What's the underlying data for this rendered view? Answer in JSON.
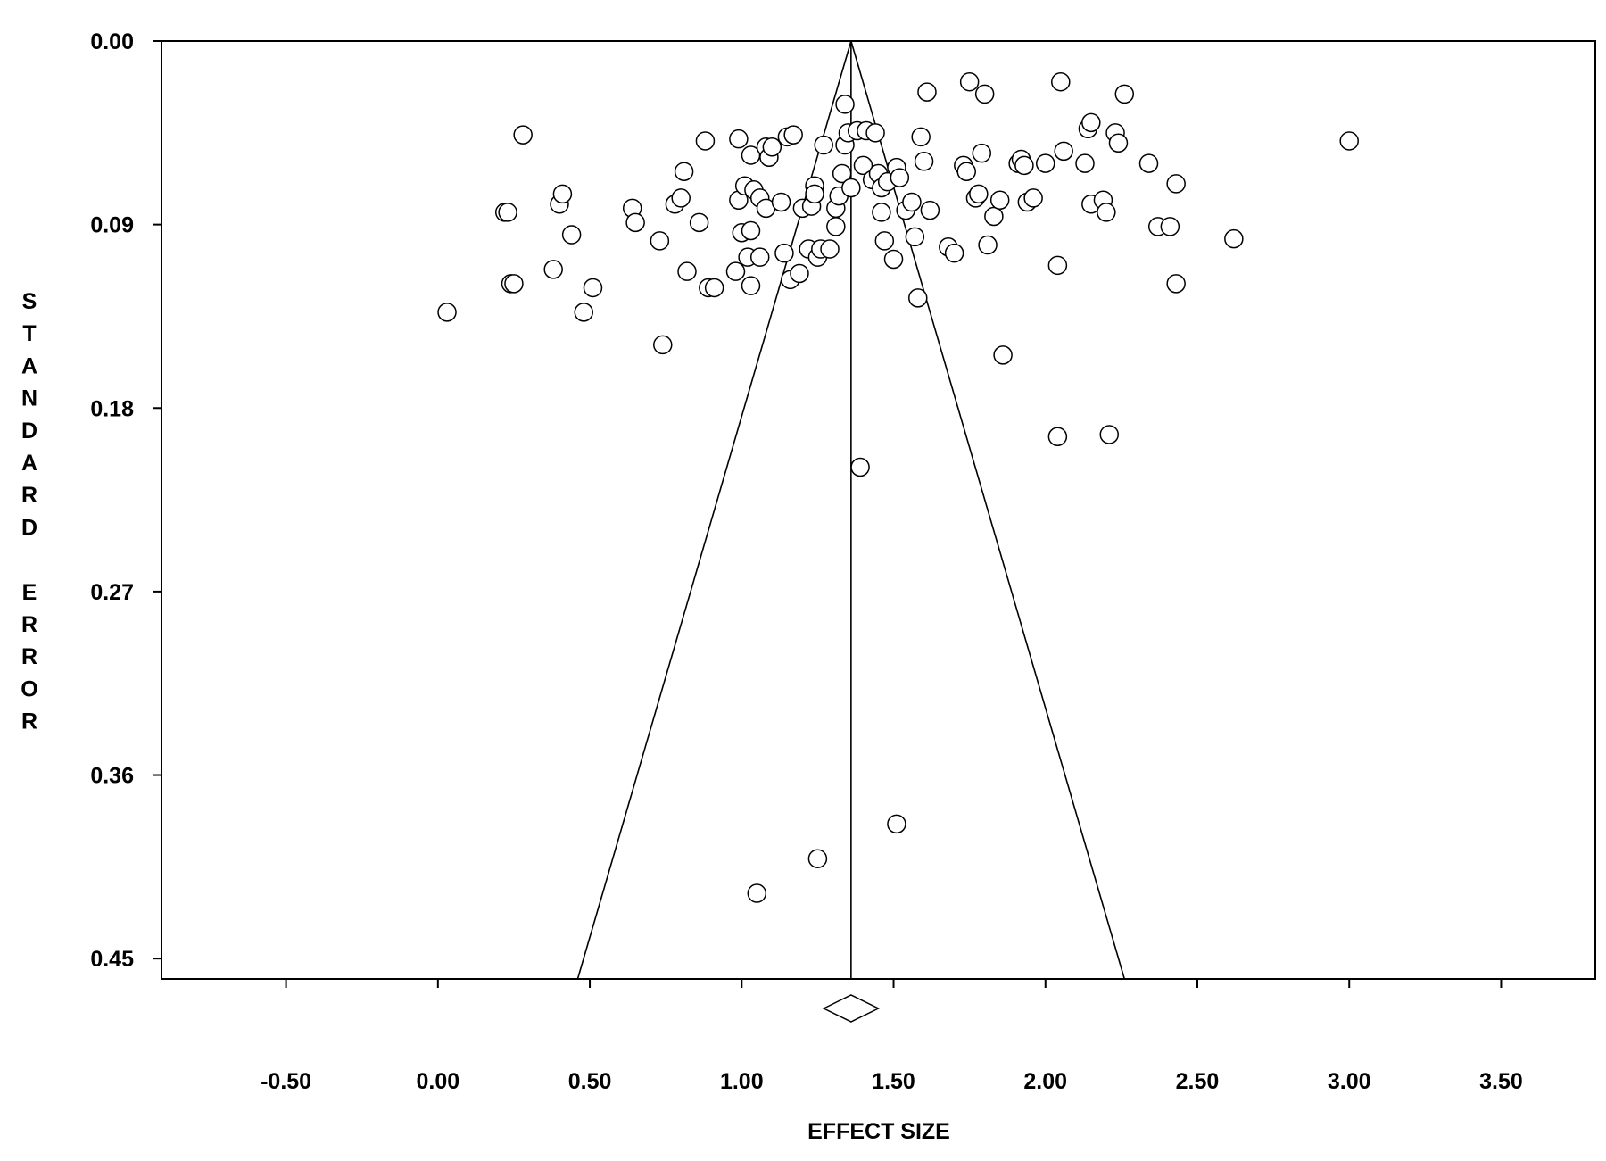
{
  "chart_data": {
    "type": "scatter",
    "title": "",
    "xlabel": "EFFECT SIZE",
    "ylabel": "STANDARD ERROR",
    "x_ticks": [
      "-0.50",
      "0.00",
      "0.50",
      "1.00",
      "1.50",
      "2.00",
      "2.50",
      "3.00",
      "3.50"
    ],
    "y_ticks": [
      "0.00",
      "0.09",
      "0.18",
      "0.27",
      "0.36",
      "0.45"
    ],
    "xlim": [
      -0.91,
      3.81
    ],
    "ylim": [
      0.0,
      0.46
    ],
    "y_inverted": true,
    "grid": false,
    "pooled_effect": 1.36,
    "funnel": {
      "apex": [
        1.36,
        0.0
      ],
      "bottom_left": [
        0.46,
        0.46
      ],
      "bottom_right": [
        2.26,
        0.46
      ]
    },
    "summary_diamond": {
      "center": 1.36,
      "lower": 1.27,
      "upper": 1.45
    },
    "points": [
      {
        "x": 0.03,
        "y": 0.133
      },
      {
        "x": 0.22,
        "y": 0.084
      },
      {
        "x": 0.23,
        "y": 0.084
      },
      {
        "x": 0.24,
        "y": 0.119
      },
      {
        "x": 0.25,
        "y": 0.119
      },
      {
        "x": 0.28,
        "y": 0.046
      },
      {
        "x": 0.38,
        "y": 0.112
      },
      {
        "x": 0.4,
        "y": 0.08
      },
      {
        "x": 0.41,
        "y": 0.075
      },
      {
        "x": 0.44,
        "y": 0.095
      },
      {
        "x": 0.48,
        "y": 0.133
      },
      {
        "x": 0.51,
        "y": 0.121
      },
      {
        "x": 0.64,
        "y": 0.082
      },
      {
        "x": 0.65,
        "y": 0.089
      },
      {
        "x": 0.73,
        "y": 0.098
      },
      {
        "x": 0.74,
        "y": 0.149
      },
      {
        "x": 0.78,
        "y": 0.08
      },
      {
        "x": 0.8,
        "y": 0.077
      },
      {
        "x": 0.81,
        "y": 0.064
      },
      {
        "x": 0.82,
        "y": 0.113
      },
      {
        "x": 0.86,
        "y": 0.089
      },
      {
        "x": 0.88,
        "y": 0.049
      },
      {
        "x": 0.89,
        "y": 0.121
      },
      {
        "x": 0.91,
        "y": 0.121
      },
      {
        "x": 0.98,
        "y": 0.113
      },
      {
        "x": 0.99,
        "y": 0.078
      },
      {
        "x": 0.99,
        "y": 0.048
      },
      {
        "x": 1.0,
        "y": 0.094
      },
      {
        "x": 1.01,
        "y": 0.071
      },
      {
        "x": 1.02,
        "y": 0.106
      },
      {
        "x": 1.03,
        "y": 0.093
      },
      {
        "x": 1.03,
        "y": 0.056
      },
      {
        "x": 1.03,
        "y": 0.12
      },
      {
        "x": 1.04,
        "y": 0.073
      },
      {
        "x": 1.06,
        "y": 0.077
      },
      {
        "x": 1.06,
        "y": 0.106
      },
      {
        "x": 1.08,
        "y": 0.082
      },
      {
        "x": 1.08,
        "y": 0.052
      },
      {
        "x": 1.09,
        "y": 0.057
      },
      {
        "x": 1.1,
        "y": 0.052
      },
      {
        "x": 1.13,
        "y": 0.079
      },
      {
        "x": 1.14,
        "y": 0.104
      },
      {
        "x": 1.15,
        "y": 0.047
      },
      {
        "x": 1.16,
        "y": 0.117
      },
      {
        "x": 1.17,
        "y": 0.046
      },
      {
        "x": 1.19,
        "y": 0.114
      },
      {
        "x": 1.2,
        "y": 0.082
      },
      {
        "x": 1.22,
        "y": 0.102
      },
      {
        "x": 1.23,
        "y": 0.081
      },
      {
        "x": 1.24,
        "y": 0.071
      },
      {
        "x": 1.24,
        "y": 0.075
      },
      {
        "x": 1.25,
        "y": 0.106
      },
      {
        "x": 1.26,
        "y": 0.102
      },
      {
        "x": 1.27,
        "y": 0.051
      },
      {
        "x": 1.29,
        "y": 0.102
      },
      {
        "x": 1.31,
        "y": 0.091
      },
      {
        "x": 1.31,
        "y": 0.082
      },
      {
        "x": 1.32,
        "y": 0.076
      },
      {
        "x": 1.33,
        "y": 0.065
      },
      {
        "x": 1.34,
        "y": 0.051
      },
      {
        "x": 1.34,
        "y": 0.031
      },
      {
        "x": 1.35,
        "y": 0.045
      },
      {
        "x": 1.36,
        "y": 0.072
      },
      {
        "x": 1.38,
        "y": 0.044
      },
      {
        "x": 1.39,
        "y": 0.209
      },
      {
        "x": 1.4,
        "y": 0.061
      },
      {
        "x": 1.41,
        "y": 0.044
      },
      {
        "x": 1.43,
        "y": 0.068
      },
      {
        "x": 1.44,
        "y": 0.045
      },
      {
        "x": 1.45,
        "y": 0.065
      },
      {
        "x": 1.46,
        "y": 0.072
      },
      {
        "x": 1.46,
        "y": 0.084
      },
      {
        "x": 1.47,
        "y": 0.098
      },
      {
        "x": 1.48,
        "y": 0.069
      },
      {
        "x": 1.5,
        "y": 0.107
      },
      {
        "x": 1.51,
        "y": 0.062
      },
      {
        "x": 1.52,
        "y": 0.067
      },
      {
        "x": 1.51,
        "y": 0.384
      },
      {
        "x": 1.54,
        "y": 0.083
      },
      {
        "x": 1.56,
        "y": 0.079
      },
      {
        "x": 1.57,
        "y": 0.096
      },
      {
        "x": 1.58,
        "y": 0.126
      },
      {
        "x": 1.59,
        "y": 0.047
      },
      {
        "x": 1.6,
        "y": 0.059
      },
      {
        "x": 1.61,
        "y": 0.025
      },
      {
        "x": 1.62,
        "y": 0.083
      },
      {
        "x": 1.68,
        "y": 0.101
      },
      {
        "x": 1.7,
        "y": 0.104
      },
      {
        "x": 1.73,
        "y": 0.061
      },
      {
        "x": 1.74,
        "y": 0.064
      },
      {
        "x": 1.75,
        "y": 0.02
      },
      {
        "x": 1.77,
        "y": 0.077
      },
      {
        "x": 1.78,
        "y": 0.075
      },
      {
        "x": 1.79,
        "y": 0.055
      },
      {
        "x": 1.8,
        "y": 0.026
      },
      {
        "x": 1.81,
        "y": 0.1
      },
      {
        "x": 1.83,
        "y": 0.086
      },
      {
        "x": 1.85,
        "y": 0.078
      },
      {
        "x": 1.86,
        "y": 0.154
      },
      {
        "x": 1.91,
        "y": 0.06
      },
      {
        "x": 1.92,
        "y": 0.058
      },
      {
        "x": 1.93,
        "y": 0.061
      },
      {
        "x": 1.94,
        "y": 0.079
      },
      {
        "x": 1.96,
        "y": 0.077
      },
      {
        "x": 2.0,
        "y": 0.06
      },
      {
        "x": 2.04,
        "y": 0.194
      },
      {
        "x": 2.04,
        "y": 0.11
      },
      {
        "x": 2.05,
        "y": 0.02
      },
      {
        "x": 2.06,
        "y": 0.054
      },
      {
        "x": 2.13,
        "y": 0.06
      },
      {
        "x": 2.14,
        "y": 0.043
      },
      {
        "x": 2.15,
        "y": 0.04
      },
      {
        "x": 2.15,
        "y": 0.08
      },
      {
        "x": 2.19,
        "y": 0.078
      },
      {
        "x": 2.2,
        "y": 0.084
      },
      {
        "x": 2.21,
        "y": 0.193
      },
      {
        "x": 2.23,
        "y": 0.045
      },
      {
        "x": 2.24,
        "y": 0.05
      },
      {
        "x": 2.34,
        "y": 0.06
      },
      {
        "x": 2.37,
        "y": 0.091
      },
      {
        "x": 2.41,
        "y": 0.091
      },
      {
        "x": 2.43,
        "y": 0.07
      },
      {
        "x": 2.43,
        "y": 0.119
      },
      {
        "x": 2.62,
        "y": 0.097
      },
      {
        "x": 3.0,
        "y": 0.049
      },
      {
        "x": 2.26,
        "y": 0.026
      },
      {
        "x": 1.05,
        "y": 0.418
      },
      {
        "x": 1.25,
        "y": 0.401
      }
    ]
  }
}
